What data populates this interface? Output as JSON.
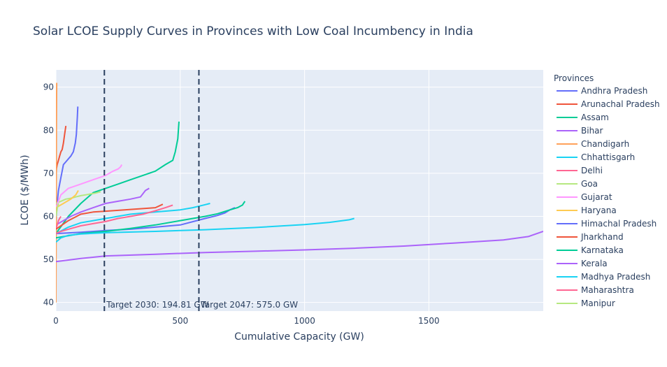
{
  "chart_data": {
    "type": "line",
    "title": "Solar LCOE Supply Curves in Provinces with Low Coal Incumbency in India",
    "xlabel": "Cumulative Capacity (GW)",
    "ylabel": "LCOE ($/MWh)",
    "xlim": [
      0,
      1960
    ],
    "ylim": [
      38,
      94
    ],
    "x_ticks": [
      0,
      500,
      1000,
      1500
    ],
    "y_ticks": [
      40,
      50,
      60,
      70,
      80,
      90
    ],
    "grid": true,
    "legend_title": "Provinces",
    "legend_position": "right",
    "series": [
      {
        "name": "Andhra Pradesh",
        "color": "#636efa",
        "x": [
          0,
          3,
          10,
          20,
          30,
          45,
          60,
          70,
          78,
          82,
          84,
          86,
          88
        ],
        "y": [
          58,
          62,
          66,
          69,
          72,
          73,
          74,
          75,
          77,
          79,
          81,
          83,
          85.5
        ]
      },
      {
        "name": "Arunachal Pradesh",
        "color": "#ef553b",
        "x": [
          0,
          2,
          5,
          10,
          15,
          20,
          25,
          30,
          35,
          40
        ],
        "y": [
          68,
          71,
          72,
          73,
          74,
          75,
          75.5,
          77,
          79,
          81
        ]
      },
      {
        "name": "Assam",
        "color": "#00cc96",
        "x": [
          0,
          50,
          100,
          150,
          200,
          250,
          300,
          350,
          400,
          440,
          470,
          480,
          485,
          490,
          495
        ],
        "y": [
          56,
          60,
          63,
          65.5,
          66.5,
          67.5,
          68.5,
          69.5,
          70.5,
          72,
          73,
          75,
          76.5,
          78,
          82
        ]
      },
      {
        "name": "Bihar",
        "color": "#ab63fa",
        "x": [
          0,
          30,
          60,
          100,
          150,
          200,
          250,
          300,
          340,
          360,
          375
        ],
        "y": [
          58,
          59,
          60,
          61,
          62,
          63,
          63.5,
          64,
          64.5,
          66,
          66.5
        ]
      },
      {
        "name": "Chandigarh",
        "color": "#ffa15a",
        "x": [
          0,
          1,
          2,
          3
        ],
        "y": [
          40,
          60,
          80,
          91
        ]
      },
      {
        "name": "Chhattisgarh",
        "color": "#19d3f3",
        "x": [
          0,
          50,
          100,
          200,
          300,
          400,
          500,
          550,
          600,
          620
        ],
        "y": [
          56,
          57.5,
          58.5,
          59.5,
          60.5,
          61,
          61.5,
          62,
          62.7,
          63
        ]
      },
      {
        "name": "Delhi",
        "color": "#ff6692",
        "x": [
          0,
          5,
          10,
          15,
          20
        ],
        "y": [
          57,
          58,
          59,
          59.5,
          60
        ]
      },
      {
        "name": "Goa",
        "color": "#b6e880",
        "x": [
          0,
          20,
          40,
          60,
          80,
          100,
          120,
          140,
          160,
          180
        ],
        "y": [
          63,
          63.5,
          64,
          64.2,
          64.5,
          64.8,
          65,
          65.2,
          65.4,
          65.7
        ]
      },
      {
        "name": "Gujarat",
        "color": "#ff97ff",
        "x": [
          0,
          20,
          50,
          100,
          150,
          200,
          230,
          250,
          260,
          265
        ],
        "y": [
          62,
          65,
          66.5,
          67.5,
          68.5,
          69.5,
          70.5,
          71,
          71.5,
          72
        ]
      },
      {
        "name": "Haryana",
        "color": "#fecb52",
        "x": [
          0,
          30,
          60,
          80,
          90
        ],
        "y": [
          62,
          63,
          64,
          65,
          66
        ]
      },
      {
        "name": "Himachal Pradesh",
        "color": "#636efa",
        "x": [
          0,
          100,
          200,
          300,
          400,
          500,
          600,
          650,
          680,
          700,
          720
        ],
        "y": [
          56,
          56.3,
          56.7,
          57,
          57.5,
          58,
          59.5,
          60.2,
          60.8,
          61.5,
          62
        ]
      },
      {
        "name": "Jharkhand",
        "color": "#ef553b",
        "x": [
          0,
          50,
          100,
          150,
          200,
          300,
          400,
          430
        ],
        "y": [
          57,
          59,
          60.5,
          61,
          61.2,
          61.6,
          62,
          62.8
        ]
      },
      {
        "name": "Karnataka",
        "color": "#00cc96",
        "x": [
          0,
          100,
          200,
          300,
          400,
          500,
          600,
          650,
          700,
          730,
          750,
          760
        ],
        "y": [
          55,
          56,
          56.5,
          57.2,
          58,
          59,
          60,
          60.6,
          61.5,
          62,
          62.6,
          63.5
        ]
      },
      {
        "name": "Kerala",
        "color": "#ab63fa",
        "x": [
          0,
          100,
          200,
          400,
          600,
          800,
          1000,
          1200,
          1400,
          1600,
          1800,
          1900,
          1960
        ],
        "y": [
          49.5,
          50.2,
          50.8,
          51.2,
          51.6,
          51.9,
          52.2,
          52.6,
          53.1,
          53.8,
          54.5,
          55.3,
          56.5
        ]
      },
      {
        "name": "Madhya Pradesh",
        "color": "#19d3f3",
        "x": [
          0,
          20,
          50,
          100,
          200,
          400,
          600,
          800,
          1000,
          1100,
          1180,
          1200
        ],
        "y": [
          54,
          55,
          55.6,
          55.9,
          56.2,
          56.5,
          56.9,
          57.4,
          58.1,
          58.6,
          59.2,
          59.5
        ]
      },
      {
        "name": "Maharashtra",
        "color": "#ff6692",
        "x": [
          0,
          20,
          50,
          100,
          150,
          200,
          250,
          300,
          350,
          400,
          440,
          470
        ],
        "y": [
          56,
          56.5,
          57,
          57.8,
          58.3,
          58.8,
          59.5,
          60,
          60.5,
          61.3,
          62,
          62.6
        ]
      },
      {
        "name": "Manipur",
        "color": "#b6e880",
        "x": [
          0,
          3,
          6,
          10
        ],
        "y": [
          60,
          61,
          62,
          63
        ]
      }
    ],
    "annotations": [
      {
        "x": 194.81,
        "text": "Target 2030: 194.81 GW"
      },
      {
        "x": 575.0,
        "text": "Target 2047: 575.0 GW"
      }
    ]
  }
}
